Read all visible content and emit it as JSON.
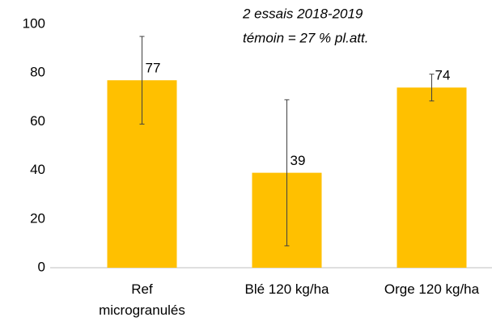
{
  "chart_data": {
    "type": "bar",
    "annotation": [
      "2 essais 2018-2019",
      "témoin = 27 % pl.att."
    ],
    "categories": [
      "Ref\nmicrogranulés",
      "Blé 120 kg/ha",
      "Orge 120 kg/ha"
    ],
    "values": [
      77,
      39,
      74
    ],
    "errors": [
      18,
      30,
      5.5
    ],
    "color": "#ffc000",
    "ylim": [
      0,
      100
    ],
    "yticks": [
      0,
      20,
      40,
      60,
      80,
      100
    ],
    "grid": false
  }
}
